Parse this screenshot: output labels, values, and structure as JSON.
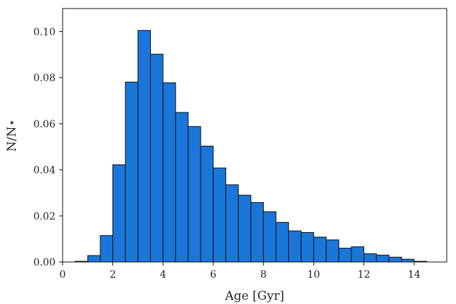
{
  "chart_data": {
    "type": "bar",
    "subtype": "histogram",
    "xlabel": "Age [Gyr]",
    "ylabel": "N/N⋆",
    "xlim": [
      0,
      15.3
    ],
    "ylim": [
      0,
      0.11
    ],
    "xticks": [
      "0",
      "2",
      "4",
      "6",
      "8",
      "10",
      "12",
      "14"
    ],
    "yticks": [
      "0.00",
      "0.02",
      "0.04",
      "0.06",
      "0.08",
      "0.10"
    ],
    "grid": false,
    "bar_color": "#1a76d9",
    "bar_edge_color": "#111111",
    "bin_width": 0.5,
    "bin_starts": [
      0.5,
      1.0,
      1.5,
      2.0,
      2.5,
      3.0,
      3.5,
      4.0,
      4.5,
      5.0,
      5.5,
      6.0,
      6.5,
      7.0,
      7.5,
      8.0,
      8.5,
      9.0,
      9.5,
      10.0,
      10.5,
      11.0,
      11.5,
      12.0,
      12.5,
      13.0,
      13.5,
      14.0
    ],
    "values": [
      0.0003,
      0.0028,
      0.0115,
      0.0422,
      0.0781,
      0.1005,
      0.0902,
      0.0778,
      0.0649,
      0.0588,
      0.0503,
      0.0408,
      0.0335,
      0.029,
      0.0258,
      0.0218,
      0.0172,
      0.0135,
      0.0128,
      0.0108,
      0.0096,
      0.006,
      0.0066,
      0.0036,
      0.003,
      0.0021,
      0.0012,
      0.0003
    ]
  }
}
